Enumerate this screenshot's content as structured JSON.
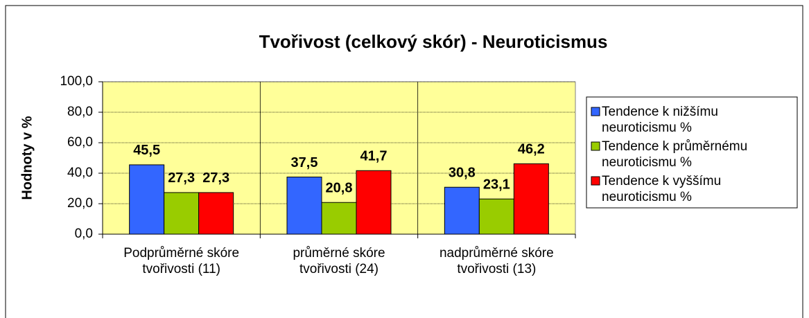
{
  "chart_data": {
    "type": "bar",
    "title": "Tvořivost (celkový skór) - Neuroticismus",
    "y_label": "Hodnoty v %",
    "categories": [
      "Podprůměrné skóre tvořivosti (11)",
      "průměrné skóre tvořivosti (24)",
      "nadprůměrné skóre tvořivosti (13)"
    ],
    "series": [
      {
        "name": "Tendence k nižšímu neuroticismu %",
        "color": "#3366FF",
        "values": [
          45.5,
          37.5,
          30.8
        ],
        "value_labels": [
          "45,5",
          "37,5",
          "30,8"
        ]
      },
      {
        "name": "Tendence k průměrnému neuroticismu %",
        "color": "#99CC00",
        "values": [
          27.3,
          20.8,
          23.1
        ],
        "value_labels": [
          "27,3",
          "20,8",
          "23,1"
        ]
      },
      {
        "name": "Tendence k vyššímu neuroticismu %",
        "color": "#FF0000",
        "values": [
          27.3,
          41.7,
          46.2
        ],
        "value_labels": [
          "27,3",
          "41,7",
          "46,2"
        ]
      }
    ],
    "ylim": [
      0,
      100
    ],
    "yticks": [
      {
        "value": 0,
        "label": "0,0"
      },
      {
        "value": 20,
        "label": "20,0"
      },
      {
        "value": 40,
        "label": "40,0"
      },
      {
        "value": 60,
        "label": "60,0"
      },
      {
        "value": 80,
        "label": "80,0"
      },
      {
        "value": 100,
        "label": "100,0"
      }
    ],
    "grid": true,
    "legend": "right",
    "plot_background": "#FFFF99"
  }
}
